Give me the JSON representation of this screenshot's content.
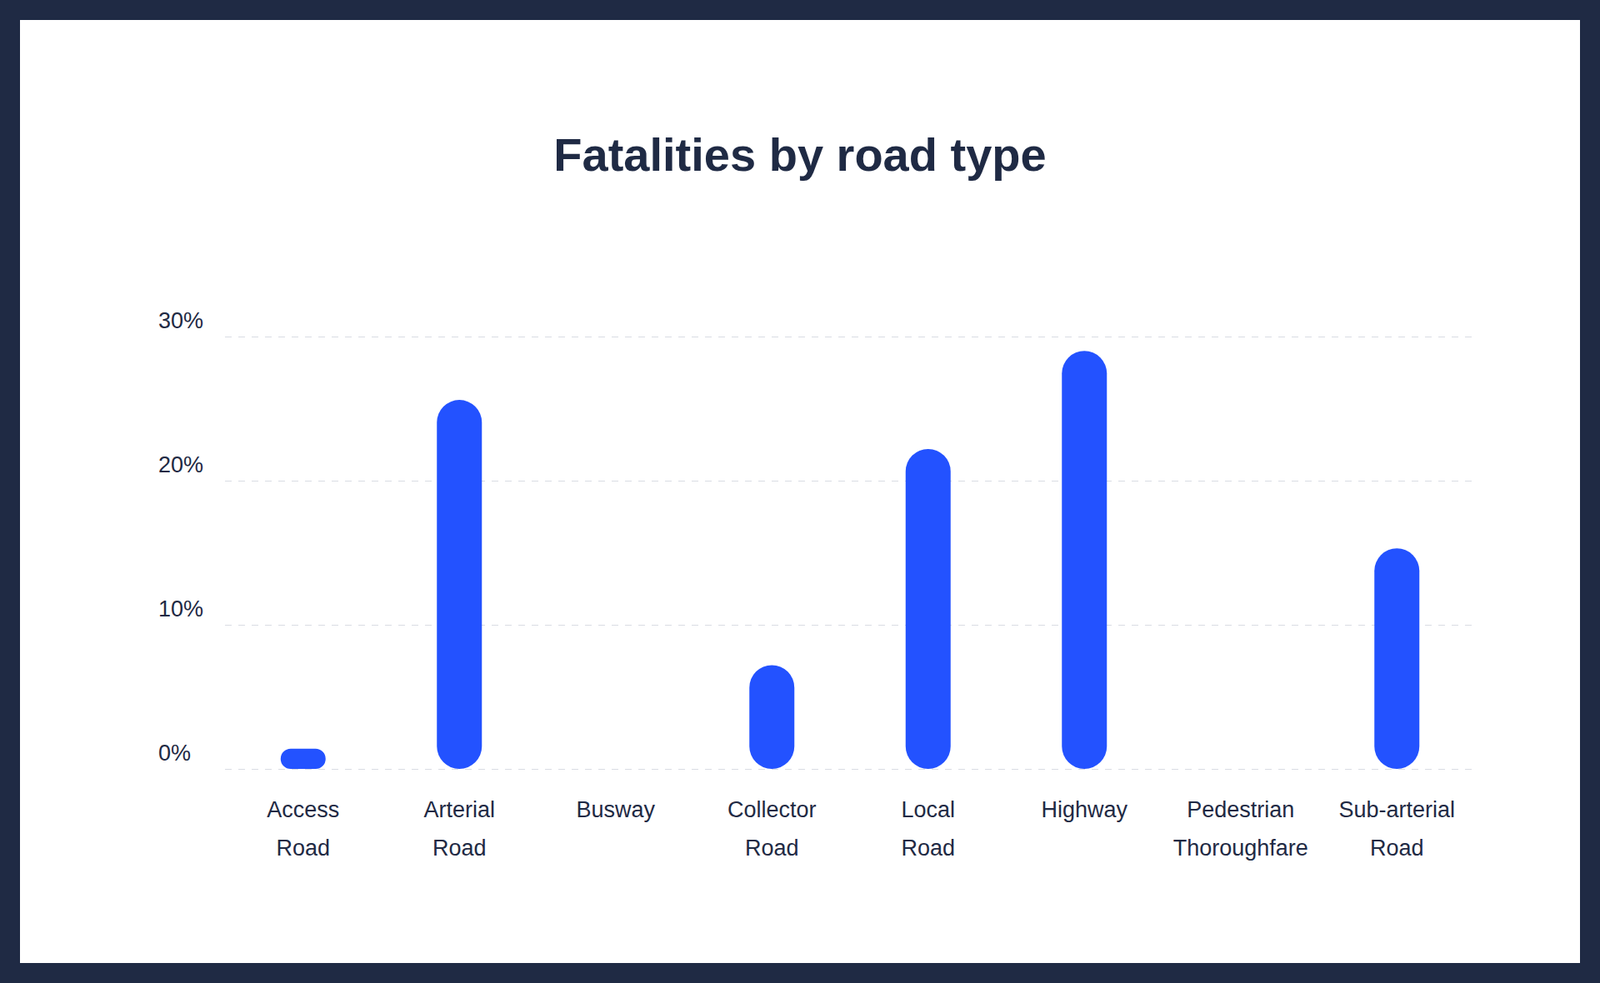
{
  "chart_data": {
    "type": "bar",
    "title": "Fatalities by road type",
    "categories": [
      "Access Road",
      "Arterial Road",
      "Busway",
      "Collector Road",
      "Local Road",
      "Highway",
      "Pedestrian Thoroughfare",
      "Sub-arterial Road"
    ],
    "values": [
      1.4,
      25.6,
      0,
      7.2,
      22.2,
      29.0,
      0,
      15.3
    ],
    "color": "#2352ff",
    "ylim": [
      0,
      30
    ],
    "yticks": [
      {
        "value": 0,
        "label": "0%"
      },
      {
        "value": 10,
        "label": "10%"
      },
      {
        "value": 20,
        "label": "20%"
      },
      {
        "value": 30,
        "label": "30%"
      }
    ],
    "grid": true
  }
}
